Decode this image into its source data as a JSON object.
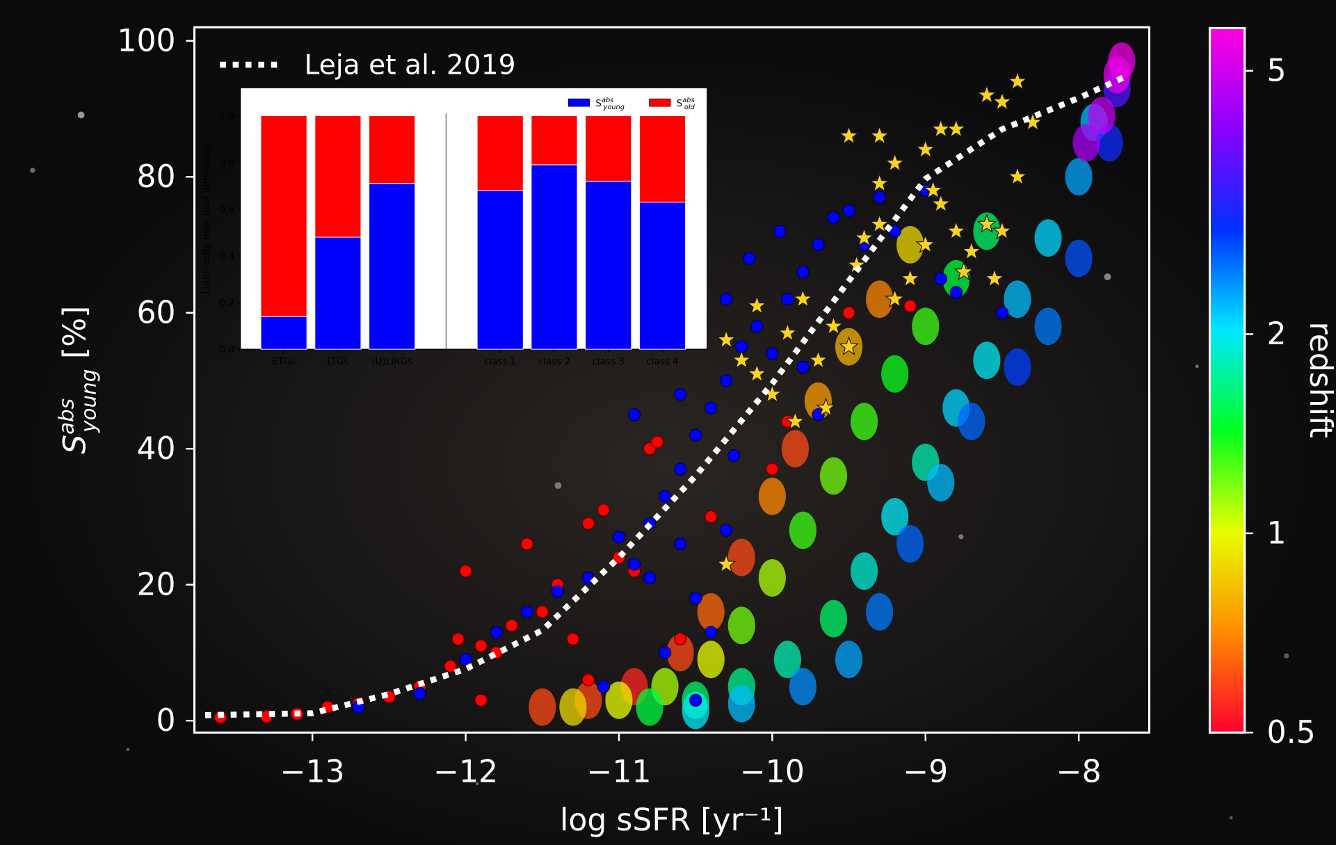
{
  "chart_data": [
    {
      "type": "scatter",
      "xlabel": "log sSFR [yr⁻¹]",
      "ylabel": {
        "symbol": "S",
        "sup": "abs",
        "sub": "young",
        "unit": "[%]"
      },
      "xlim": [
        -13.77,
        -7.54
      ],
      "ylim": [
        -1.75,
        102
      ],
      "xticks": [
        {
          "value": -13,
          "label": "−13"
        },
        {
          "value": -12,
          "label": "−12"
        },
        {
          "value": -11,
          "label": "−11"
        },
        {
          "value": -10,
          "label": "−10"
        },
        {
          "value": -9,
          "label": "−9"
        },
        {
          "value": -8,
          "label": "−8"
        }
      ],
      "yticks": [
        0,
        20,
        40,
        60,
        80,
        100
      ],
      "legend": "upper left",
      "series": [
        {
          "kind": "dots",
          "x": [
            -11.5,
            -11.2,
            -10.9,
            -10.6,
            -10.4,
            -10.2,
            -10,
            -9.85,
            -9.7,
            -9.5,
            -9.3,
            -9.1,
            -11.3,
            -11,
            -10.7,
            -10.4,
            -10.2,
            -10,
            -9.8,
            -9.6,
            -9.4,
            -9.2,
            -9,
            -8.8,
            -8.6,
            -10.8,
            -10.5,
            -10.2,
            -9.9,
            -9.6,
            -9.4,
            -9.2,
            -9,
            -8.8,
            -8.6,
            -8.4,
            -8.2,
            -8,
            -7.9,
            -10.5,
            -10.2,
            -9.8,
            -9.5,
            -9.3,
            -9.1,
            -8.9,
            -8.7,
            -8.4,
            -8.2,
            -8,
            -7.8,
            -7.75,
            -7.95,
            -7.85,
            -7.75,
            -7.72
          ],
          "values": [
            2,
            3,
            5,
            10,
            16,
            24,
            33,
            40,
            47,
            55,
            62,
            70,
            2,
            3,
            5,
            9,
            14,
            21,
            28,
            36,
            44,
            51,
            58,
            65,
            72,
            2,
            3,
            5,
            9,
            15,
            22,
            30,
            38,
            46,
            53,
            62,
            71,
            80,
            88,
            1.5,
            2.5,
            5,
            9,
            16,
            26,
            35,
            44,
            52,
            58,
            68,
            85,
            93,
            85,
            89,
            95,
            97
          ],
          "z": [
            0.6,
            0.6,
            0.55,
            0.6,
            0.65,
            0.6,
            0.7,
            0.6,
            0.75,
            0.8,
            0.7,
            0.9,
            0.9,
            1,
            1.1,
            1,
            1.2,
            1.1,
            1.3,
            1.2,
            1.3,
            1.4,
            1.3,
            1.5,
            1.6,
            1.5,
            1.6,
            1.7,
            1.8,
            1.6,
            1.9,
            2,
            1.8,
            2.1,
            2,
            2.2,
            2.1,
            2.3,
            2.2,
            2,
            2.2,
            2.4,
            2.3,
            2.5,
            2.6,
            2.2,
            2.6,
            2.8,
            2.5,
            2.7,
            3,
            3.5,
            4.5,
            4.8,
            5.3,
            5.5
          ]
        },
        {
          "kind": "circle",
          "color": "#ff0000",
          "edgecolor": "#600000",
          "x": [
            -13.6,
            -13.3,
            -13.1,
            -12.9,
            -12.7,
            -12.5,
            -12.3,
            -12.1,
            -12.05,
            -12,
            -11.9,
            -11.8,
            -11.6,
            -11.5,
            -11.4,
            -11.3,
            -11.2,
            -11.1,
            -11,
            -10.9,
            -10.8,
            -10.75,
            -10.6,
            -11.9,
            -11.7,
            -11.2,
            -10.4,
            -10,
            -9.9,
            -9.5,
            -9.1
          ],
          "values": [
            0.5,
            0.6,
            1,
            2,
            2.5,
            3.5,
            5,
            8,
            12,
            22,
            11,
            10,
            26,
            16,
            20,
            12,
            29,
            31,
            24,
            22,
            40,
            41,
            12,
            3,
            14,
            6,
            30,
            37,
            44,
            60,
            61
          ]
        },
        {
          "kind": "circle",
          "color": "#0000ff",
          "edgecolor": "#000040",
          "x": [
            -12.7,
            -12.3,
            -12,
            -11.8,
            -11.6,
            -11.4,
            -11.2,
            -11,
            -10.9,
            -10.8,
            -10.7,
            -10.6,
            -10.5,
            -10.4,
            -10.3,
            -10.2,
            -10.1,
            -10,
            -9.9,
            -9.8,
            -9.7,
            -9.6,
            -9.5,
            -9.4,
            -9.3,
            -9.2,
            -9,
            -8.9,
            -8.8,
            -8.5,
            -10.6,
            -10.5,
            -10.4,
            -10.8,
            -11.1,
            -10.3,
            -10.25,
            -10.9,
            -10.6,
            -10.3,
            -10.15,
            -9.95,
            -9.7,
            -9.8,
            -10.7,
            -10.5
          ],
          "values": [
            2,
            4,
            9,
            13,
            16,
            19,
            21,
            27,
            23,
            29,
            33,
            37,
            42,
            46,
            50,
            55,
            58,
            54,
            62,
            66,
            70,
            74,
            75,
            70,
            77,
            72,
            78,
            65,
            63,
            60,
            26,
            18,
            13,
            21,
            5,
            28,
            39,
            45,
            48,
            62,
            68,
            72,
            45,
            52,
            10,
            3
          ]
        },
        {
          "kind": "star",
          "color": "#ffd21e",
          "edgecolor": "#1a1a1a",
          "x": [
            -10.3,
            -10.2,
            -10.1,
            -10,
            -9.9,
            -9.8,
            -9.7,
            -9.6,
            -9.5,
            -9.45,
            -9.4,
            -9.3,
            -9.2,
            -9.1,
            -9,
            -8.95,
            -8.9,
            -8.8,
            -8.75,
            -8.7,
            -8.6,
            -8.55,
            -8.5,
            -8.4,
            -8.4,
            -8.5,
            -8.6,
            -8.8,
            -8.9,
            -9,
            -9.2,
            -9.3,
            -9.3,
            -9.5,
            -10.1,
            -10.3,
            -9.85,
            -9.65,
            -8.3
          ],
          "values": [
            23,
            53,
            51,
            48,
            57,
            62,
            53,
            58,
            55,
            67,
            71,
            73,
            62,
            65,
            70,
            78,
            76,
            72,
            66,
            69,
            73,
            65,
            72,
            80,
            94,
            91,
            92,
            87,
            87,
            84,
            82,
            86,
            79,
            86,
            61,
            56,
            44,
            46,
            88
          ]
        },
        {
          "kind": "line",
          "name": "Leja et al. 2019",
          "color": "#ffffff",
          "x": [
            -13.7,
            -13,
            -12.5,
            -12,
            -11.5,
            -11,
            -10.5,
            -10,
            -9.5,
            -9,
            -8.5,
            -8,
            -7.7
          ],
          "values": [
            0.8,
            1.1,
            3.9,
            7.6,
            13.3,
            24,
            36,
            49.6,
            64.7,
            79.7,
            87,
            91.6,
            94.7
          ]
        }
      ],
      "colorbar": {
        "label": "redshift",
        "log": true,
        "lim": [
          0.5,
          5.8
        ],
        "ticks": [
          0.5,
          1,
          2,
          5
        ],
        "colors": [
          "#ff0030",
          "#ff8c00",
          "#e6ff00",
          "#00ff20",
          "#00e8ff",
          "#0030ff",
          "#8a00ff",
          "#ff00e0"
        ]
      }
    },
    {
      "type": "bar",
      "stacked": true,
      "ylabel": "Luminosity over dust luminosity",
      "ylim": [
        0,
        1.12
      ],
      "yticks": [
        {
          "value": 0,
          "label": "0.0"
        },
        {
          "value": 0.2,
          "label": "0.2"
        },
        {
          "value": 0.4,
          "label": "0.4"
        },
        {
          "value": 0.6,
          "label": "0.6"
        },
        {
          "value": 0.8,
          "label": "0.8"
        },
        {
          "value": 1,
          "label": "1.0"
        }
      ],
      "categories": [
        "ETGs",
        "LTGs",
        "(U)LIRGs",
        "class 1",
        "class 2",
        "class 3",
        "class 4"
      ],
      "legend": "upper right",
      "series": [
        {
          "name": "S",
          "name_sup": "abs",
          "name_sub": "young",
          "color": "#0000ff",
          "values": [
            0.14,
            0.48,
            0.71,
            0.68,
            0.79,
            0.72,
            0.63
          ]
        },
        {
          "name": "S",
          "name_sup": "abs",
          "name_sub": "old",
          "color": "#ff0000",
          "values": [
            0.86,
            0.52,
            0.29,
            0.32,
            0.21,
            0.28,
            0.37
          ]
        }
      ]
    }
  ]
}
